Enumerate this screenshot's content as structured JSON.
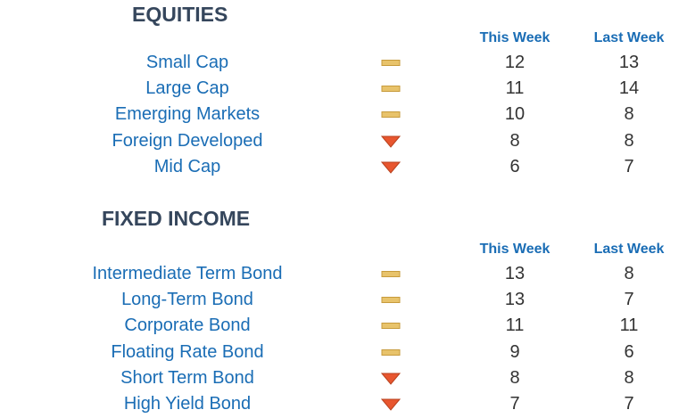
{
  "colors": {
    "title": "#35465c",
    "accent": "#1a6db5",
    "neutral": "#e8c36b",
    "down": "#e8562f"
  },
  "equities": {
    "title": "EQUITIES",
    "header_this": "This Week",
    "header_last": "Last Week",
    "rows": [
      {
        "label": "Small Cap",
        "trend": "neutral-dash-icon",
        "this_week": "12",
        "last_week": "13"
      },
      {
        "label": "Large Cap",
        "trend": "neutral-dash-icon",
        "this_week": "11",
        "last_week": "14"
      },
      {
        "label": "Emerging Markets",
        "trend": "neutral-dash-icon",
        "this_week": "10",
        "last_week": "8"
      },
      {
        "label": "Foreign Developed",
        "trend": "down-arrow-icon",
        "this_week": "8",
        "last_week": "8"
      },
      {
        "label": "Mid Cap",
        "trend": "down-arrow-icon",
        "this_week": "6",
        "last_week": "7"
      }
    ]
  },
  "fixed_income": {
    "title": "FIXED INCOME",
    "header_this": "This Week",
    "header_last": "Last Week",
    "rows": [
      {
        "label": "Intermediate Term Bond",
        "trend": "neutral-dash-icon",
        "this_week": "13",
        "last_week": "8"
      },
      {
        "label": "Long-Term Bond",
        "trend": "neutral-dash-icon",
        "this_week": "13",
        "last_week": "7"
      },
      {
        "label": "Corporate Bond",
        "trend": "neutral-dash-icon",
        "this_week": "11",
        "last_week": "11"
      },
      {
        "label": "Floating Rate Bond",
        "trend": "neutral-dash-icon",
        "this_week": "9",
        "last_week": "6"
      },
      {
        "label": "Short Term Bond",
        "trend": "down-arrow-icon",
        "this_week": "8",
        "last_week": "8"
      },
      {
        "label": "High Yield Bond",
        "trend": "down-arrow-icon",
        "this_week": "7",
        "last_week": "7"
      }
    ]
  }
}
